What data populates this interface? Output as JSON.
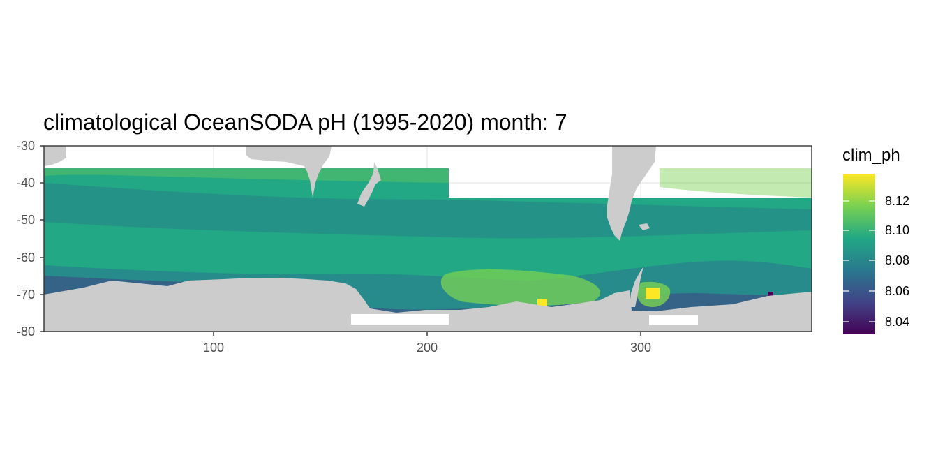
{
  "title": "climatological OceanSODA pH (1995-2020) month: 7",
  "x_ticks": [
    "100",
    "200",
    "300"
  ],
  "y_ticks": [
    "-30",
    "-40",
    "-50",
    "-60",
    "-70",
    "-80"
  ],
  "legend": {
    "title": "clim_ph",
    "ticks": [
      "8.12",
      "8.10",
      "8.08",
      "8.06",
      "8.04"
    ]
  },
  "chart_data": {
    "type": "heatmap",
    "title": "climatological OceanSODA pH (1995-2020) month: 7",
    "xlabel": "",
    "ylabel": "",
    "xlim": [
      20,
      380
    ],
    "ylim": [
      -80,
      -30
    ],
    "x_ticks": [
      100,
      200,
      300
    ],
    "y_ticks": [
      -30,
      -40,
      -50,
      -60,
      -70,
      -80
    ],
    "fill_variable": "clim_ph",
    "fill_range": [
      8.03,
      8.14
    ],
    "legend_ticks": [
      8.04,
      8.06,
      8.08,
      8.1,
      8.12
    ],
    "colormap": "viridis",
    "grid": true,
    "legend_position": "right",
    "colors": {
      "land": "#cccccc",
      "panel_background": "#ffffff",
      "grid": "#ebebeb",
      "panel_border": "#333333",
      "viridis": [
        "#440154",
        "#414487",
        "#2a788e",
        "#22a884",
        "#7ad151",
        "#fde725"
      ]
    }
  }
}
